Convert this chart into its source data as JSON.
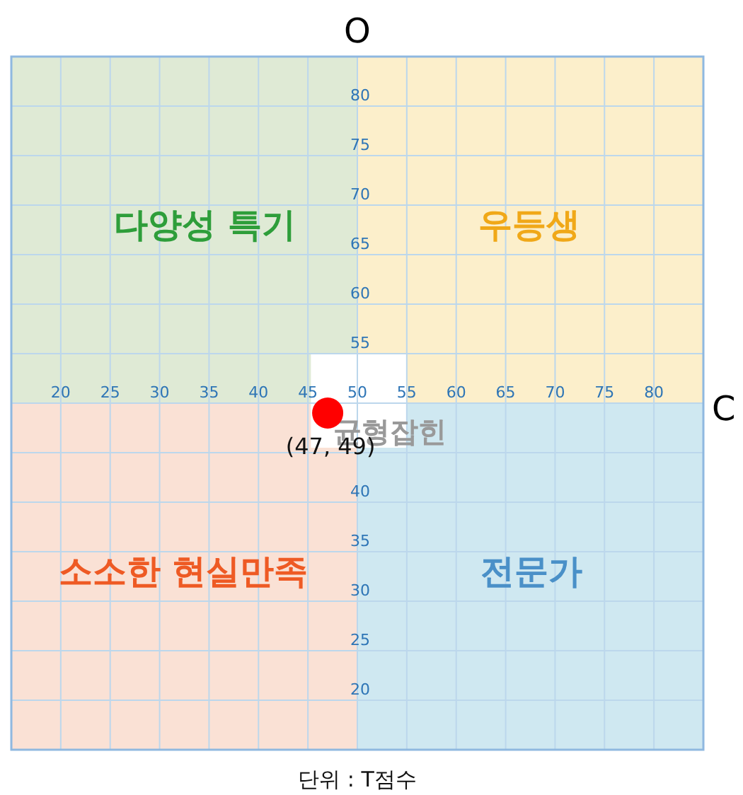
{
  "chart_data": {
    "type": "scatter",
    "xlabel": "C",
    "ylabel": "O",
    "x": [
      47
    ],
    "values": [
      49
    ],
    "value_labels": [
      "(47, 49)"
    ],
    "color": "#ff0000",
    "marker": "circle",
    "xlim": [
      15,
      85
    ],
    "ylim": [
      15,
      85
    ],
    "xticks": [
      20,
      25,
      30,
      35,
      40,
      45,
      50,
      55,
      60,
      65,
      70,
      75,
      80
    ],
    "yticks": [
      20,
      25,
      30,
      35,
      40,
      {
        "value": 45,
        "label": null
      },
      {
        "value": 50,
        "label": null
      },
      55,
      60,
      65,
      70,
      75,
      80
    ],
    "grid": true,
    "annotations": [
      "다양성 특기",
      "우등생",
      "소소한 현실만족",
      "전문가",
      "균형잡힌",
      "단위 : T점수"
    ]
  }
}
